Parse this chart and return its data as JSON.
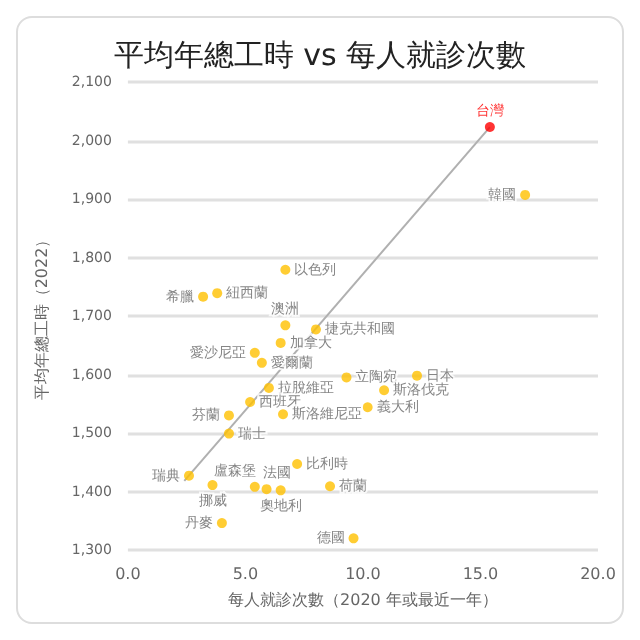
{
  "chart_data": {
    "type": "scatter",
    "title": "平均年總工時 vs 每人就診次數",
    "xlabel": "每人就診次數（2020 年或最近一年）",
    "ylabel": "平均年總工時（2022）",
    "xlim": [
      0,
      20
    ],
    "xticks": [
      {
        "value": 0,
        "label": "0.0"
      },
      {
        "value": 5,
        "label": "5.0"
      },
      {
        "value": 10,
        "label": "10.0"
      },
      {
        "value": 15,
        "label": "15.0"
      },
      {
        "value": 20,
        "label": "20.0"
      }
    ],
    "ylim": [
      1300,
      2100
    ],
    "yticks": [
      {
        "value": 1300,
        "label": "1,300"
      },
      {
        "value": 1400,
        "label": "1,400"
      },
      {
        "value": 1500,
        "label": "1,500"
      },
      {
        "value": 1600,
        "label": "1,600"
      },
      {
        "value": 1700,
        "label": "1,700"
      },
      {
        "value": 1800,
        "label": "1,800"
      },
      {
        "value": 1900,
        "label": "1,900"
      },
      {
        "value": 2000,
        "label": "2,000"
      },
      {
        "value": 2100,
        "label": "2,100"
      }
    ],
    "grid": "y",
    "legend": false,
    "marker": "circle",
    "series": [
      {
        "type": "line",
        "color": "#b0b0b0",
        "x": [
          2.4,
          15.4
        ],
        "values": [
          1418,
          2023
        ],
        "marker": "none"
      },
      {
        "name": "台灣",
        "color": "#ff0000",
        "x": [
          15.4
        ],
        "values": [
          2023
        ]
      },
      {
        "name": "韓國",
        "color": "#ffc000",
        "x": [
          16.9
        ],
        "values": [
          1907
        ]
      },
      {
        "name": "以色列",
        "color": "#ffc000",
        "x": [
          6.7
        ],
        "values": [
          1779
        ]
      },
      {
        "name": "紐西蘭",
        "color": "#ffc000",
        "x": [
          3.8
        ],
        "values": [
          1739
        ]
      },
      {
        "name": "希臘",
        "color": "#ffc000",
        "x": [
          3.2
        ],
        "values": [
          1733
        ]
      },
      {
        "name": "澳洲",
        "color": "#ffc000",
        "x": [
          6.7
        ],
        "values": [
          1684
        ]
      },
      {
        "name": "捷克共和國",
        "color": "#ffc000",
        "x": [
          8.0
        ],
        "values": [
          1677
        ]
      },
      {
        "name": "加拿大",
        "color": "#ffc000",
        "x": [
          6.5
        ],
        "values": [
          1654
        ]
      },
      {
        "name": "愛沙尼亞",
        "color": "#ffc000",
        "x": [
          5.4
        ],
        "values": [
          1637
        ]
      },
      {
        "name": "愛爾蘭",
        "color": "#ffc000",
        "x": [
          5.7
        ],
        "values": [
          1620
        ]
      },
      {
        "name": "立陶宛",
        "color": "#ffc000",
        "x": [
          9.3
        ],
        "values": [
          1595
        ]
      },
      {
        "name": "日本",
        "color": "#ffc000",
        "x": [
          12.3
        ],
        "values": [
          1598
        ]
      },
      {
        "name": "拉脫維亞",
        "color": "#ffc000",
        "x": [
          6.0
        ],
        "values": [
          1577
        ]
      },
      {
        "name": "斯洛伐克",
        "color": "#ffc000",
        "x": [
          10.9
        ],
        "values": [
          1573
        ]
      },
      {
        "name": "西班牙",
        "color": "#ffc000",
        "x": [
          5.2
        ],
        "values": [
          1553
        ]
      },
      {
        "name": "義大利",
        "color": "#ffc000",
        "x": [
          10.2
        ],
        "values": [
          1544
        ]
      },
      {
        "name": "芬蘭",
        "color": "#ffc000",
        "x": [
          4.3
        ],
        "values": [
          1530
        ]
      },
      {
        "name": "斯洛維尼亞",
        "color": "#ffc000",
        "x": [
          6.6
        ],
        "values": [
          1532
        ]
      },
      {
        "name": "瑞士",
        "color": "#ffc000",
        "x": [
          4.3
        ],
        "values": [
          1499
        ]
      },
      {
        "name": "比利時",
        "color": "#ffc000",
        "x": [
          7.2
        ],
        "values": [
          1447
        ]
      },
      {
        "name": "荷蘭",
        "color": "#ffc000",
        "x": [
          8.6
        ],
        "values": [
          1409
        ]
      },
      {
        "name": "瑞典",
        "color": "#ffc000",
        "x": [
          2.6
        ],
        "values": [
          1427
        ]
      },
      {
        "name": "挪威",
        "color": "#ffc000",
        "x": [
          3.6
        ],
        "values": [
          1411
        ]
      },
      {
        "name": "盧森堡",
        "color": "#ffc000",
        "x": [
          5.4
        ],
        "values": [
          1408
        ]
      },
      {
        "name": "法國",
        "color": "#ffc000",
        "x": [
          5.9
        ],
        "values": [
          1404
        ]
      },
      {
        "name": "奧地利",
        "color": "#ffc000",
        "x": [
          6.5
        ],
        "values": [
          1402
        ]
      },
      {
        "name": "丹麥",
        "color": "#ffc000",
        "x": [
          4.0
        ],
        "values": [
          1346
        ]
      },
      {
        "name": "德國",
        "color": "#ffc000",
        "x": [
          9.6
        ],
        "values": [
          1320
        ]
      }
    ]
  }
}
